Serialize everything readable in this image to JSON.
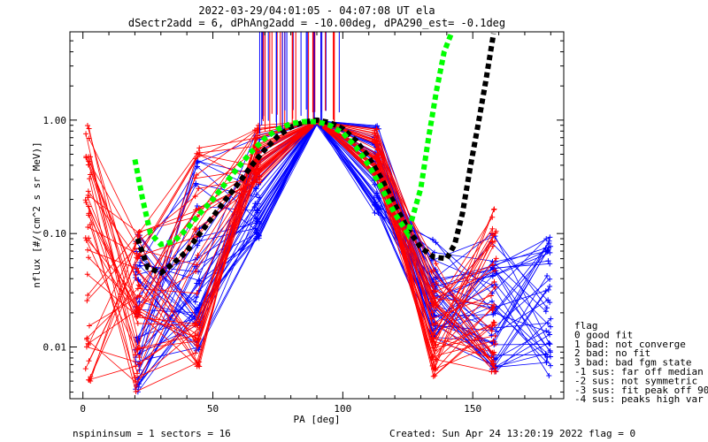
{
  "chart_data": {
    "type": "line",
    "title": "2022-03-29/04:01:05 - 04:07:08 UT ela",
    "subtitle": "dSectr2add = 6, dPhAng2add = -10.00deg, dPA290_est=  -0.1deg",
    "xlabel": "PA [deg]",
    "ylabel": "nflux [#/(cm^2 s sr MeV)]",
    "xlim": [
      -5,
      185
    ],
    "ylim": [
      0.0035,
      6.0
    ],
    "yscale": "log",
    "xticks": [
      "0",
      "50",
      "100",
      "150"
    ],
    "xtick_values": [
      0,
      50,
      100,
      150
    ],
    "yticks": [
      "0.01",
      "0.10",
      "1.00"
    ],
    "ytick_values": [
      0.01,
      0.1,
      1.0
    ],
    "grid": false,
    "pa_bins": [
      2,
      21,
      44,
      67,
      90,
      113,
      135,
      158,
      179
    ],
    "series": [
      {
        "color": "#ff0000",
        "values_min": [
          0.005,
          0.004,
          0.0065,
          0.28,
          0.97,
          0.3,
          0.0055,
          0.006,
          0.0
        ],
        "values_max": [
          1.35,
          0.17,
          0.6,
          0.9,
          1.0,
          0.9,
          0.06,
          0.2,
          0.0
        ]
      },
      {
        "color": "#0000ff",
        "values_min": [
          0.0,
          0.0038,
          0.009,
          0.09,
          0.97,
          0.15,
          0.012,
          0.006,
          0.0055
        ],
        "values_max": [
          0.0,
          0.1,
          0.45,
          0.9,
          1.0,
          0.9,
          0.1,
          0.1,
          0.1
        ]
      },
      {
        "color": "#000000",
        "x": [
          21,
          25,
          30,
          35,
          40,
          45,
          50,
          55,
          60,
          65,
          70,
          75,
          80,
          85,
          90,
          95,
          100,
          105,
          110,
          115,
          120,
          125,
          130,
          135,
          140,
          143,
          146,
          149,
          152,
          155,
          158
        ],
        "values": [
          0.09,
          0.05,
          0.045,
          0.055,
          0.07,
          0.1,
          0.14,
          0.2,
          0.28,
          0.4,
          0.55,
          0.72,
          0.87,
          0.96,
          1.0,
          0.95,
          0.84,
          0.66,
          0.47,
          0.3,
          0.18,
          0.11,
          0.075,
          0.062,
          0.06,
          0.08,
          0.15,
          0.38,
          0.9,
          2.2,
          5.8
        ]
      },
      {
        "color": "#00ff00",
        "x": [
          20,
          23,
          26,
          30,
          35,
          40,
          45,
          50,
          55,
          60,
          65,
          70,
          75,
          80,
          85,
          90,
          95,
          100,
          105,
          110,
          115,
          120,
          125,
          130,
          133,
          136,
          139,
          142
        ],
        "values": [
          0.45,
          0.2,
          0.1,
          0.08,
          0.085,
          0.11,
          0.15,
          0.2,
          0.28,
          0.39,
          0.53,
          0.69,
          0.83,
          0.93,
          0.97,
          0.97,
          0.9,
          0.77,
          0.58,
          0.4,
          0.25,
          0.15,
          0.1,
          0.25,
          0.7,
          1.8,
          4.0,
          6.0
        ]
      }
    ],
    "legend": {
      "placement": "right",
      "entries": [
        "flag",
        " 0 good fit",
        " 1 bad: not converge",
        " 2 bad: no fit",
        " 3 bad: bad fgm state",
        "-1 sus: far off median",
        "-2 sus: not symmetric",
        "-3 sus: fit peak off 90",
        "-4 sus: peaks high var"
      ]
    }
  },
  "footer": {
    "left": "nspininsum =  1  sectors = 16",
    "right": "Created: Sun Apr 24 13:20:19 2022   flag = 0"
  }
}
